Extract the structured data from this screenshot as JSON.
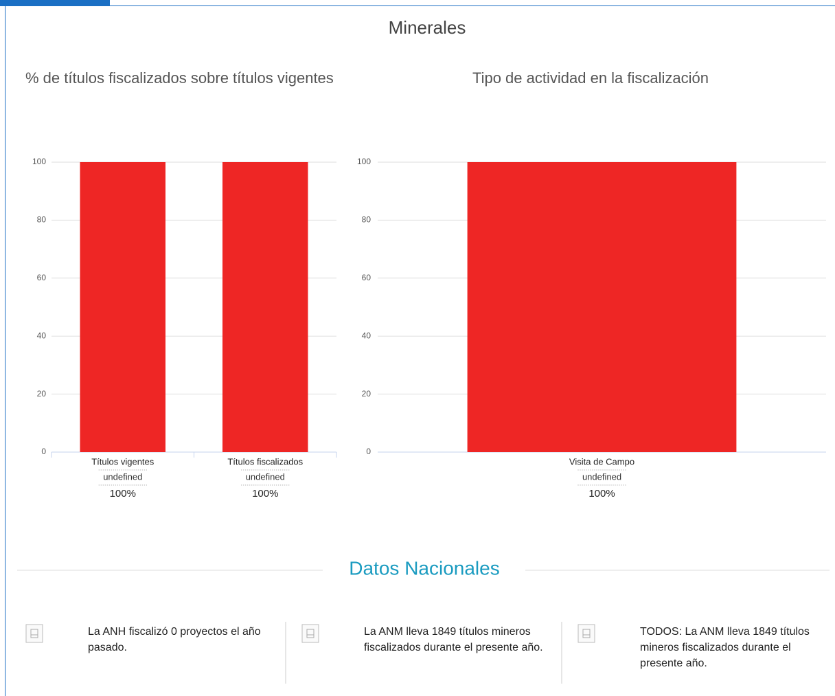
{
  "title": "Minerales",
  "chart_data": [
    {
      "type": "bar",
      "title": "% de títulos fiscalizados sobre títulos vigentes",
      "categories": [
        "Títulos vigentes",
        "Títulos fiscalizados"
      ],
      "subcategories": [
        "undefined",
        "undefined"
      ],
      "values": [
        100,
        100
      ],
      "value_labels": [
        "100%",
        "100%"
      ],
      "color": "#ee2625",
      "ylim": [
        0,
        100
      ],
      "yticks": [
        0,
        20,
        40,
        60,
        80,
        100
      ],
      "grid": true
    },
    {
      "type": "bar",
      "title": "Tipo de actividad en la fiscalización",
      "categories": [
        "Visita de Campo"
      ],
      "subcategories": [
        "undefined"
      ],
      "values": [
        100
      ],
      "value_labels": [
        "100%"
      ],
      "color": "#ee2625",
      "ylim": [
        0,
        100
      ],
      "yticks": [
        0,
        20,
        40,
        60,
        80,
        100
      ],
      "grid": true
    }
  ],
  "section_title": "Datos Nacionales",
  "items": [
    "La ANH fiscalizó 0 proyectos el año pasado.",
    "La ANM lleva 1849 títulos mineros fiscalizados durante el presente año.",
    "TODOS: La ANM lleva 1849 títulos mineros fiscalizados durante el presente año."
  ]
}
